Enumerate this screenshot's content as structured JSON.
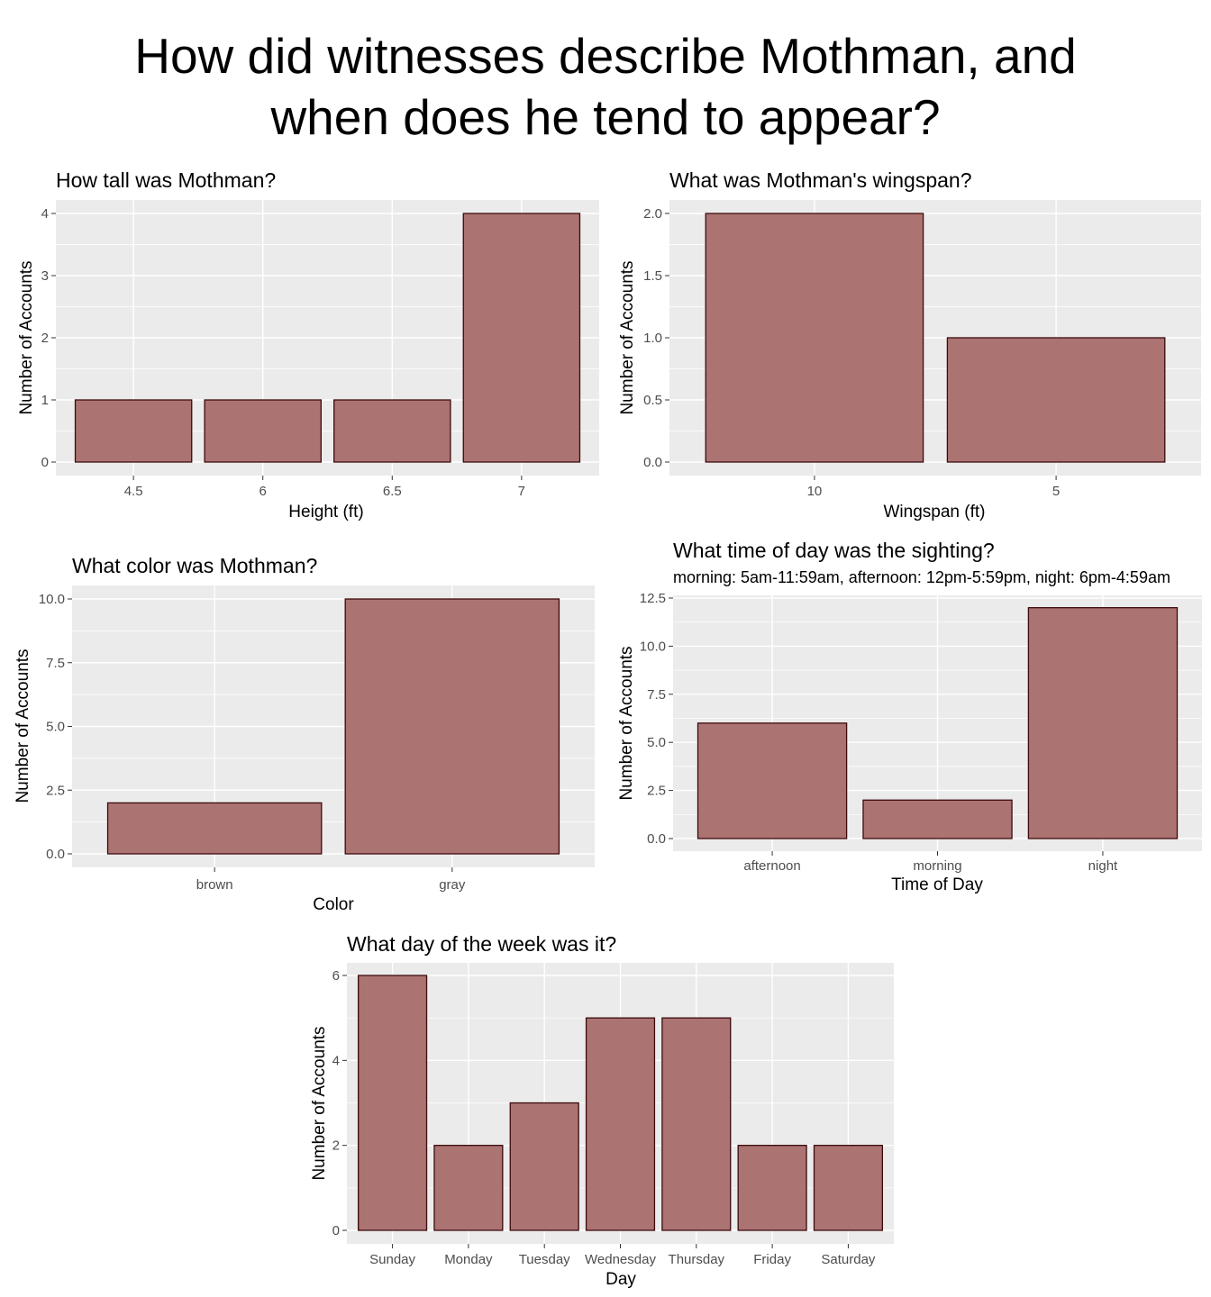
{
  "page_title": {
    "line1": "How did witnesses describe Mothman, and",
    "line2": "when does he tend to appear?"
  },
  "colors": {
    "bar_fill": "#ab7472",
    "bar_stroke": "#3d0a0c",
    "panel_bg": "#ebebeb",
    "grid": "#ffffff"
  },
  "chart_data": [
    {
      "id": "height",
      "type": "bar",
      "title": "How tall was Mothman?",
      "subtitle": "",
      "xlabel": "Height (ft)",
      "ylabel": "Number of Accounts",
      "categories": [
        "4.5",
        "6",
        "6.5",
        "7"
      ],
      "values": [
        1,
        1,
        1,
        4
      ],
      "ylim": [
        0,
        4
      ],
      "yticks": [
        "0",
        "1",
        "2",
        "3",
        "4"
      ],
      "grid": true
    },
    {
      "id": "wingspan",
      "type": "bar",
      "title": "What was Mothman's wingspan?",
      "subtitle": "",
      "xlabel": "Wingspan (ft)",
      "ylabel": "Number of Accounts",
      "categories": [
        "10",
        "5"
      ],
      "values": [
        2,
        1
      ],
      "ylim": [
        0,
        2
      ],
      "yticks": [
        "0.0",
        "0.5",
        "1.0",
        "1.5",
        "2.0"
      ],
      "grid": true
    },
    {
      "id": "color",
      "type": "bar",
      "title": "What color was Mothman?",
      "subtitle": "",
      "xlabel": "Color",
      "ylabel": "Number of Accounts",
      "categories": [
        "brown",
        "gray"
      ],
      "values": [
        2,
        10
      ],
      "ylim": [
        0,
        10
      ],
      "yticks": [
        "0.0",
        "2.5",
        "5.0",
        "7.5",
        "10.0"
      ],
      "grid": true
    },
    {
      "id": "timeofday",
      "type": "bar",
      "title": "What time of day was the sighting?",
      "subtitle": "morning: 5am-11:59am, afternoon: 12pm-5:59pm, night: 6pm-4:59am",
      "xlabel": "Time of Day",
      "ylabel": "Number of Accounts",
      "categories": [
        "afternoon",
        "morning",
        "night"
      ],
      "values": [
        6,
        2,
        12
      ],
      "ylim": [
        0,
        12.5
      ],
      "yticks": [
        "0.0",
        "2.5",
        "5.0",
        "7.5",
        "10.0",
        "12.5"
      ],
      "grid": true
    },
    {
      "id": "weekday",
      "type": "bar",
      "title": "What day of the week was it?",
      "subtitle": "",
      "xlabel": "Day",
      "ylabel": "Number of Accounts",
      "categories": [
        "Sunday",
        "Monday",
        "Tuesday",
        "Wednesday",
        "Thursday",
        "Friday",
        "Saturday"
      ],
      "values": [
        6,
        2,
        3,
        5,
        5,
        2,
        2
      ],
      "ylim": [
        0,
        6
      ],
      "yticks": [
        "0",
        "2",
        "4",
        "6"
      ],
      "grid": true
    }
  ]
}
